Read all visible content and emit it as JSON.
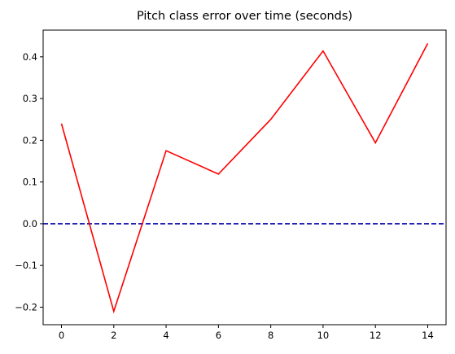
{
  "chart_data": {
    "type": "line",
    "title": "Pitch class error over time (seconds)",
    "xlabel": "",
    "ylabel": "",
    "x": [
      0,
      2,
      4,
      6,
      8,
      10,
      12,
      14
    ],
    "series": [
      {
        "values": [
          0.24,
          -0.21,
          0.175,
          0.119,
          0.25,
          0.414,
          0.194,
          0.432
        ],
        "color": "#ff0000",
        "style": "solid"
      }
    ],
    "reference_lines": [
      {
        "axis": "y",
        "value": 0.0,
        "color": "#0000aa",
        "style": "dashed"
      }
    ],
    "xlim": [
      -0.7,
      14.7
    ],
    "ylim": [
      -0.242,
      0.464
    ],
    "xticks": [
      0,
      2,
      4,
      6,
      8,
      10,
      12,
      14
    ],
    "yticks": [
      -0.2,
      -0.1,
      0.0,
      0.1,
      0.2,
      0.3,
      0.4
    ],
    "ytick_labels": [
      "−0.2",
      "−0.1",
      "0.0",
      "0.1",
      "0.2",
      "0.3",
      "0.4"
    ],
    "grid": false,
    "legend": false
  }
}
